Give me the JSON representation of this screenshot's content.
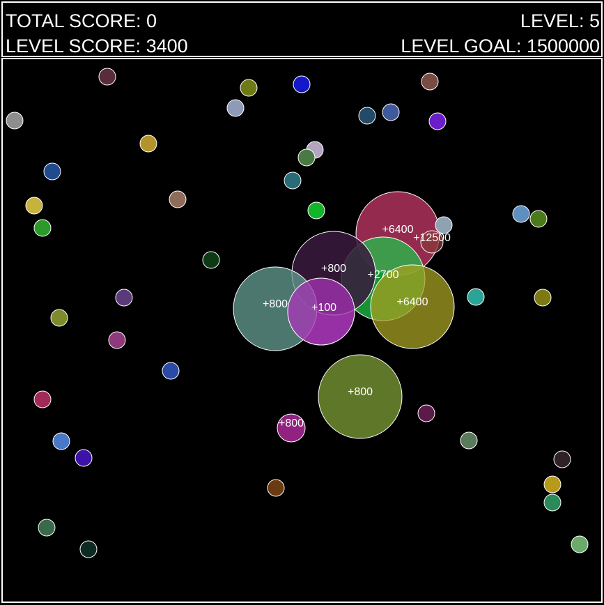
{
  "hud": {
    "total_score": "TOTAL SCORE: 0",
    "level": "LEVEL: 5",
    "level_score": "LEVEL SCORE: 3400",
    "level_goal": "LEVEL GOAL: 1500000"
  },
  "explosions": [
    {
      "label": "+6400",
      "color": "#c6396a",
      "label_color": "#ffffff"
    },
    {
      "label": "+12500",
      "color": "#8a3a3a",
      "label_color": "#ff7aa8"
    },
    {
      "label": "+2700",
      "color": "#22c24a",
      "label_color": "#e59ec0"
    },
    {
      "label": "+800",
      "color": "#a132b0",
      "label_color": "#ffffff"
    },
    {
      "label": "+100",
      "color": "#a43db0",
      "label_color": "#c07ac8"
    },
    {
      "label": "+6400",
      "color": "#a7a021",
      "label_color": "#ffffff"
    },
    {
      "label": "+800",
      "color": "#659f94",
      "label_color": "#ffffff"
    },
    {
      "label": "+800",
      "color": "#7f9f37",
      "label_color": "#ffffff"
    },
    {
      "label": "+800",
      "color": "#c22daa",
      "label_color": "#ffffff"
    }
  ],
  "balls": [
    {
      "color": "#5a2b3a"
    },
    {
      "color": "#6f7a16"
    },
    {
      "color": "#1518c8"
    },
    {
      "color": "#7a4a44"
    },
    {
      "color": "#8e8e8e"
    },
    {
      "color": "#8f99b8"
    },
    {
      "color": "#234a66"
    },
    {
      "color": "#3e5a9a"
    },
    {
      "color": "#6a1ec8"
    },
    {
      "color": "#b3942c"
    },
    {
      "color": "#b4a4c0"
    },
    {
      "color": "#4a7a44"
    },
    {
      "color": "#1f4a8e"
    },
    {
      "color": "#2a6b78"
    },
    {
      "color": "#c6b33e"
    },
    {
      "color": "#8f6b5a"
    },
    {
      "color": "#12b42a"
    },
    {
      "color": "#2a9a2a"
    },
    {
      "color": "#0d3a12"
    },
    {
      "color": "#5e8fbf"
    },
    {
      "color": "#4a7a1a"
    },
    {
      "color": "#5a3a7a"
    },
    {
      "color": "#2aa496"
    },
    {
      "color": "#7d7a12"
    },
    {
      "color": "#7e8a2c"
    },
    {
      "color": "#8e3a7a"
    },
    {
      "color": "#2a4aa8"
    },
    {
      "color": "#a12a5a"
    },
    {
      "color": "#5a1a4a"
    },
    {
      "color": "#4a78c8"
    },
    {
      "color": "#5a7a5a"
    },
    {
      "color": "#3d12a8"
    },
    {
      "color": "#2e2228"
    },
    {
      "color": "#b89a1a"
    },
    {
      "color": "#2a8a5a"
    },
    {
      "color": "#6a3a10"
    },
    {
      "color": "#3a6a4a"
    },
    {
      "color": "#0e2a24"
    },
    {
      "color": "#6aaa6a"
    },
    {
      "color": "#8fa2b2"
    }
  ]
}
